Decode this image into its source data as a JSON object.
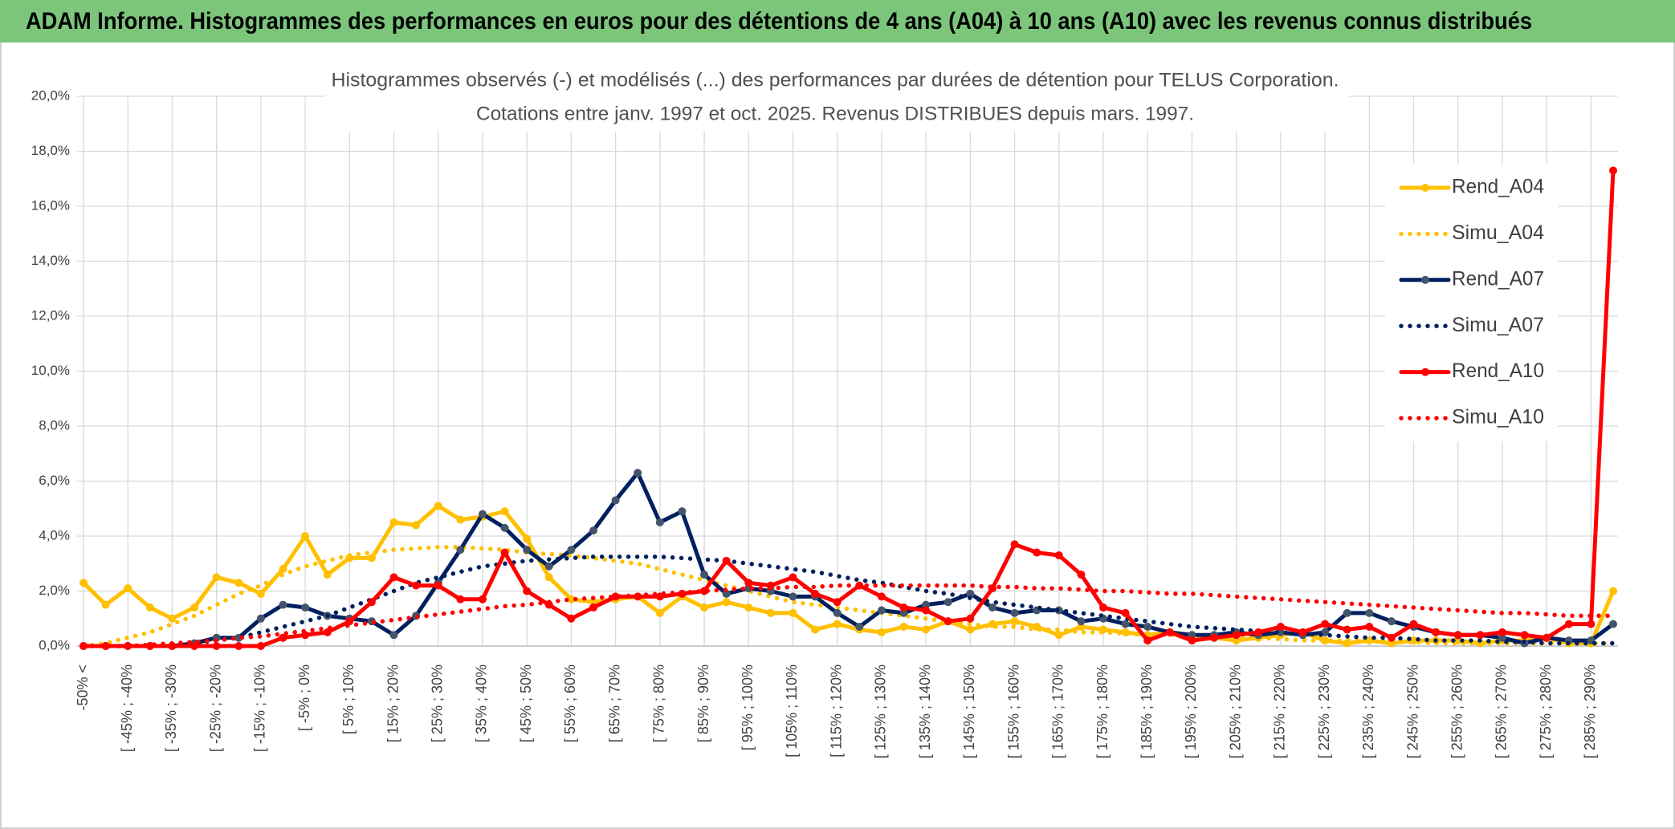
{
  "header": {
    "title": "ADAM Informe. Histogrammes des performances en euros pour des détentions de 4 ans (A04) à 10 ans (A10) avec les revenus connus distribués"
  },
  "chart_data": {
    "type": "line",
    "title": "Histogrammes observés (-) et modélisés (...) des performances par durées de détention pour TELUS Corporation.",
    "subtitle": "Cotations entre janv. 1997 et oct. 2025. Revenus DISTRIBUES depuis mars. 1997.",
    "categories": [
      "-50% <",
      null,
      "[ -45% ; -40%",
      null,
      "[ -35% ; -30%",
      null,
      "[ -25% ; -20%",
      null,
      "[ -15% ; -10%",
      null,
      "[ -5% ; 0%",
      null,
      "[ 5% ; 10%",
      null,
      "[ 15% ; 20%",
      null,
      "[ 25% ; 30%",
      null,
      "[ 35% ; 40%",
      null,
      "[ 45% ; 50%",
      null,
      "[ 55% ; 60%",
      null,
      "[ 65% ; 70%",
      null,
      "[ 75% ; 80%",
      null,
      "[ 85% ; 90%",
      null,
      "[ 95% ; 100%",
      null,
      "[ 105% ; 110%",
      null,
      "[ 115% ; 120%",
      null,
      "[ 125% ; 130%",
      null,
      "[ 135% ; 140%",
      null,
      "[ 145% ; 150%",
      null,
      "[ 155% ; 160%",
      null,
      "[ 165% ; 170%",
      null,
      "[ 175% ; 180%",
      null,
      "[ 185% ; 190%",
      null,
      "[ 195% ; 200%",
      null,
      "[ 205% ; 210%",
      null,
      "[ 215% ; 220%",
      null,
      "[ 225% ; 230%",
      null,
      "[ 235% ; 240%",
      null,
      "[ 245% ; 250%",
      null,
      "[ 255% ; 260%",
      null,
      "[ 265% ; 270%",
      null,
      "[ 275% ; 280%",
      null,
      "[ 285% ; 290%",
      null
    ],
    "series": [
      {
        "name": "Rend_A04",
        "color": "#ffc000",
        "style": "solid",
        "markers": true,
        "values": [
          2.3,
          1.5,
          2.1,
          1.4,
          1.0,
          1.4,
          2.5,
          2.3,
          1.9,
          2.8,
          4.0,
          2.6,
          3.2,
          3.2,
          4.5,
          4.4,
          5.1,
          4.6,
          4.7,
          4.9,
          3.9,
          2.5,
          1.7,
          1.6,
          1.7,
          1.8,
          1.2,
          1.8,
          1.4,
          1.6,
          1.4,
          1.2,
          1.2,
          0.6,
          0.8,
          0.6,
          0.5,
          0.7,
          0.6,
          0.9,
          0.6,
          0.8,
          0.9,
          0.7,
          0.4,
          0.7,
          0.6,
          0.5,
          0.4,
          0.5,
          0.4,
          0.3,
          0.2,
          0.3,
          0.4,
          0.5,
          0.2,
          0.1,
          0.2,
          0.1,
          0.2,
          0.2,
          0.2,
          0.1,
          0.2,
          0.2,
          0.3,
          0.1,
          0.1,
          2.0
        ]
      },
      {
        "name": "Simu_A04",
        "color": "#ffc000",
        "style": "dotted",
        "markers": false,
        "values": [
          0.0,
          0.1,
          0.3,
          0.5,
          0.8,
          1.1,
          1.5,
          1.9,
          2.2,
          2.6,
          2.9,
          3.1,
          3.3,
          3.4,
          3.5,
          3.55,
          3.6,
          3.6,
          3.55,
          3.5,
          3.4,
          3.35,
          3.3,
          3.2,
          3.1,
          3.0,
          2.8,
          2.6,
          2.4,
          2.2,
          2.0,
          1.8,
          1.6,
          1.5,
          1.4,
          1.3,
          1.2,
          1.1,
          1.0,
          0.9,
          0.8,
          0.7,
          0.7,
          0.6,
          0.6,
          0.5,
          0.5,
          0.45,
          0.4,
          0.4,
          0.35,
          0.3,
          0.3,
          0.3,
          0.25,
          0.2,
          0.2,
          0.2,
          0.2,
          0.15,
          0.15,
          0.1,
          0.1,
          0.1,
          0.1,
          0.1,
          0.1,
          0.1,
          0.1,
          0.1
        ]
      },
      {
        "name": "Rend_A07",
        "color": "#002060",
        "style": "solid",
        "markers": true,
        "values": [
          0,
          0,
          0,
          0,
          0,
          0.1,
          0.3,
          0.3,
          1.0,
          1.5,
          1.4,
          1.1,
          1.0,
          0.9,
          0.4,
          1.1,
          2.3,
          3.5,
          4.8,
          4.3,
          3.5,
          2.9,
          3.5,
          4.2,
          5.3,
          6.3,
          4.5,
          4.9,
          2.6,
          1.9,
          2.1,
          2.0,
          1.8,
          1.8,
          1.2,
          0.7,
          1.3,
          1.2,
          1.5,
          1.6,
          1.9,
          1.4,
          1.2,
          1.3,
          1.3,
          0.9,
          1.0,
          0.8,
          0.7,
          0.5,
          0.4,
          0.4,
          0.5,
          0.4,
          0.5,
          0.4,
          0.5,
          1.2,
          1.2,
          0.9,
          0.7,
          0.5,
          0.4,
          0.4,
          0.3,
          0.1,
          0.3,
          0.2,
          0.2,
          0.8
        ]
      },
      {
        "name": "Simu_A07",
        "color": "#002060",
        "style": "dotted",
        "markers": false,
        "values": [
          0,
          0,
          0,
          0,
          0.05,
          0.1,
          0.2,
          0.3,
          0.5,
          0.7,
          0.9,
          1.1,
          1.4,
          1.7,
          2.0,
          2.3,
          2.5,
          2.7,
          2.9,
          3.0,
          3.1,
          3.15,
          3.2,
          3.25,
          3.25,
          3.25,
          3.25,
          3.2,
          3.15,
          3.1,
          3.0,
          2.9,
          2.8,
          2.7,
          2.55,
          2.4,
          2.3,
          2.15,
          2.0,
          1.9,
          1.75,
          1.6,
          1.5,
          1.4,
          1.3,
          1.2,
          1.1,
          1.0,
          0.9,
          0.8,
          0.7,
          0.65,
          0.6,
          0.55,
          0.5,
          0.45,
          0.4,
          0.35,
          0.3,
          0.3,
          0.25,
          0.2,
          0.2,
          0.2,
          0.15,
          0.15,
          0.1,
          0.1,
          0.1,
          0.1
        ]
      },
      {
        "name": "Rend_A10",
        "color": "#ff0000",
        "style": "solid",
        "markers": true,
        "values": [
          0,
          0,
          0,
          0,
          0,
          0,
          0,
          0,
          0,
          0.3,
          0.4,
          0.5,
          0.9,
          1.6,
          2.5,
          2.2,
          2.2,
          1.7,
          1.7,
          3.4,
          2.0,
          1.5,
          1.0,
          1.4,
          1.8,
          1.8,
          1.8,
          1.9,
          2.0,
          3.1,
          2.3,
          2.2,
          2.5,
          1.9,
          1.6,
          2.2,
          1.8,
          1.4,
          1.3,
          0.9,
          1.0,
          2.1,
          3.7,
          3.4,
          3.3,
          2.6,
          1.4,
          1.2,
          0.2,
          0.5,
          0.2,
          0.3,
          0.4,
          0.5,
          0.7,
          0.5,
          0.8,
          0.6,
          0.7,
          0.3,
          0.8,
          0.5,
          0.4,
          0.4,
          0.5,
          0.4,
          0.3,
          0.8,
          0.8,
          17.3
        ]
      },
      {
        "name": "Simu_A10",
        "color": "#ff0000",
        "style": "dotted",
        "markers": false,
        "values": [
          0,
          0,
          0,
          0.05,
          0.1,
          0.15,
          0.2,
          0.3,
          0.35,
          0.45,
          0.55,
          0.65,
          0.75,
          0.85,
          0.95,
          1.05,
          1.15,
          1.25,
          1.35,
          1.45,
          1.5,
          1.6,
          1.7,
          1.75,
          1.8,
          1.85,
          1.9,
          1.95,
          2.0,
          2.05,
          2.1,
          2.1,
          2.15,
          2.15,
          2.2,
          2.2,
          2.2,
          2.2,
          2.2,
          2.2,
          2.2,
          2.15,
          2.15,
          2.1,
          2.1,
          2.05,
          2.0,
          2.0,
          1.95,
          1.9,
          1.9,
          1.85,
          1.8,
          1.75,
          1.7,
          1.65,
          1.6,
          1.55,
          1.5,
          1.45,
          1.4,
          1.35,
          1.3,
          1.25,
          1.2,
          1.2,
          1.15,
          1.1,
          1.1,
          1.1
        ]
      }
    ],
    "ylim": [
      0,
      20
    ],
    "yticks": [
      {
        "value": 0,
        "label": "0,0%"
      },
      {
        "value": 2,
        "label": "2,0%"
      },
      {
        "value": 4,
        "label": "4,0%"
      },
      {
        "value": 6,
        "label": "6,0%"
      },
      {
        "value": 8,
        "label": "8,0%"
      },
      {
        "value": 10,
        "label": "10,0%"
      },
      {
        "value": 12,
        "label": "12,0%"
      },
      {
        "value": 14,
        "label": "14,0%"
      },
      {
        "value": 16,
        "label": "16,0%"
      },
      {
        "value": 18,
        "label": "18,0%"
      },
      {
        "value": 20,
        "label": "20,0%"
      }
    ],
    "grid": true,
    "legend": "right"
  }
}
